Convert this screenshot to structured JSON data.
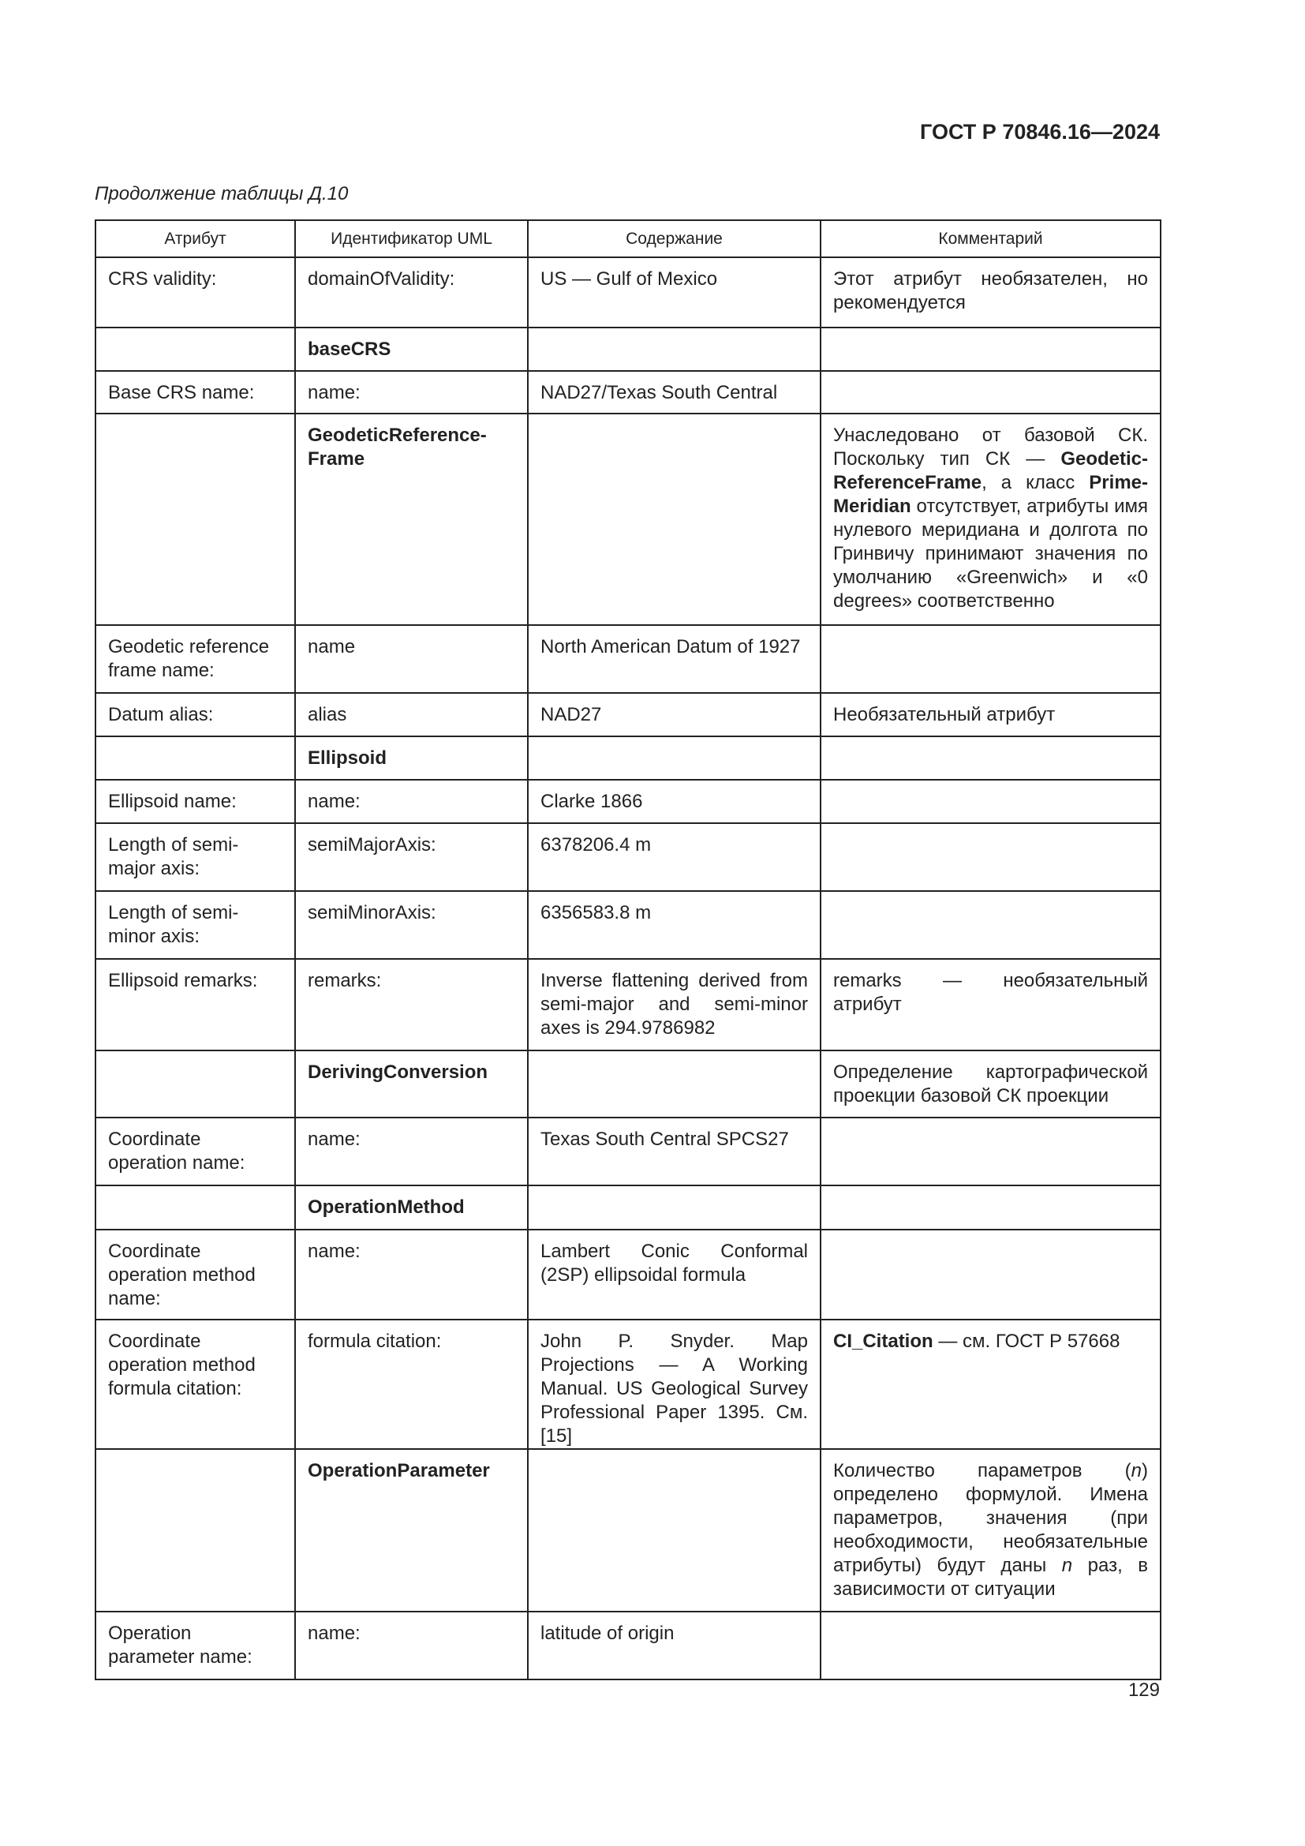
{
  "header": {
    "standard": "ГОСТ Р 70846.16—2024",
    "caption": "Продолжение таблицы Д.10"
  },
  "table": {
    "columns": [
      "Атрибут",
      "Идентификатор UML",
      "Содержание",
      "Комментарий"
    ],
    "rows": [
      [
        [
          {
            "t": "CRS validity:"
          }
        ],
        [
          {
            "t": "domainOfValidity:"
          }
        ],
        [
          {
            "t": "US — Gulf of Mexico"
          }
        ],
        [
          {
            "t": "Этот атрибут необязателен, но рекомендуется"
          }
        ]
      ],
      [
        [],
        [
          {
            "t": "baseCRS",
            "b": true
          }
        ],
        [],
        []
      ],
      [
        [
          {
            "t": "Base CRS name:"
          }
        ],
        [
          {
            "t": "name:"
          }
        ],
        [
          {
            "t": "NAD27/Texas South Central"
          }
        ],
        []
      ],
      [
        [],
        [
          {
            "t": "GeodeticReference-\nFrame",
            "b": true
          }
        ],
        [],
        [
          {
            "t": "Унаследовано от базовой СК. Поскольку тип СК — "
          },
          {
            "t": "Geodetic-ReferenceFrame",
            "b": true
          },
          {
            "t": ", а класс "
          },
          {
            "t": "Prime-Meridian",
            "b": true
          },
          {
            "t": " отсутствует, атрибуты имя нулевого меридиана и долгота по Гринвичу принимают значения по умолчанию «Greenwich» и «0 degrees» соответственно"
          }
        ]
      ],
      [
        [
          {
            "t": "Geodetic reference frame name:"
          }
        ],
        [
          {
            "t": "name"
          }
        ],
        [
          {
            "t": "North American Datum of 1927"
          }
        ],
        []
      ],
      [
        [
          {
            "t": "Datum alias:"
          }
        ],
        [
          {
            "t": "alias"
          }
        ],
        [
          {
            "t": "NAD27"
          }
        ],
        [
          {
            "t": "Необязательный атрибут"
          }
        ]
      ],
      [
        [],
        [
          {
            "t": "Ellipsoid",
            "b": true
          }
        ],
        [],
        []
      ],
      [
        [
          {
            "t": "Ellipsoid name:"
          }
        ],
        [
          {
            "t": "name:"
          }
        ],
        [
          {
            "t": "Clarke 1866"
          }
        ],
        []
      ],
      [
        [
          {
            "t": "Length of semi-\nmajor axis:"
          }
        ],
        [
          {
            "t": "semiMajorAxis:"
          }
        ],
        [
          {
            "t": "6378206.4 m"
          }
        ],
        []
      ],
      [
        [
          {
            "t": "Length of semi-\nminor axis:"
          }
        ],
        [
          {
            "t": "semiMinorAxis:"
          }
        ],
        [
          {
            "t": "6356583.8 m"
          }
        ],
        []
      ],
      [
        [
          {
            "t": "Ellipsoid remarks:"
          }
        ],
        [
          {
            "t": "remarks:"
          }
        ],
        [
          {
            "t": "Inverse flattening derived from semi-major and semi-minor axes is 294.9786982"
          }
        ],
        [
          {
            "t": "remarks — необязательный атрибут"
          }
        ]
      ],
      [
        [],
        [
          {
            "t": "DerivingConversion",
            "b": true
          }
        ],
        [],
        [
          {
            "t": "Определение картографической проекции базовой СК проекции"
          }
        ]
      ],
      [
        [
          {
            "t": "Coordinate operation name:"
          }
        ],
        [
          {
            "t": "name:"
          }
        ],
        [
          {
            "t": "Texas South Central SPCS27"
          }
        ],
        []
      ],
      [
        [],
        [
          {
            "t": "OperationMethod",
            "b": true
          }
        ],
        [],
        []
      ],
      [
        [
          {
            "t": "Coordinate operation method name:"
          }
        ],
        [
          {
            "t": "name:"
          }
        ],
        [
          {
            "t": "Lambert Conic Conformal (2SP) ellipsoidal formula"
          }
        ],
        []
      ],
      [
        [
          {
            "t": "Coordinate operation method formula citation:"
          }
        ],
        [
          {
            "t": "formula citation:"
          }
        ],
        [
          {
            "t": "John P. Snyder. Map Projections — A Working Manual. US Geological Survey Professional Paper 1395. См. [15]"
          }
        ],
        [
          {
            "t": "CI_Citation",
            "b": true
          },
          {
            "t": " — см. ГОСТ Р 57668"
          }
        ]
      ],
      [
        [],
        [
          {
            "t": "OperationParameter",
            "b": true
          }
        ],
        [],
        [
          {
            "t": "Количество параметров ("
          },
          {
            "t": "n",
            "i": true
          },
          {
            "t": ") определено формулой. Имена параметров, значения (при необходимости, необязательные атрибуты) будут даны "
          },
          {
            "t": "n",
            "i": true
          },
          {
            "t": " раз, в зависимости от ситуации"
          }
        ]
      ],
      [
        [
          {
            "t": "Operation parameter name:"
          }
        ],
        [
          {
            "t": "name:"
          }
        ],
        [
          {
            "t": "latitude of origin"
          }
        ],
        []
      ]
    ]
  },
  "footer": {
    "page_number": "129"
  }
}
